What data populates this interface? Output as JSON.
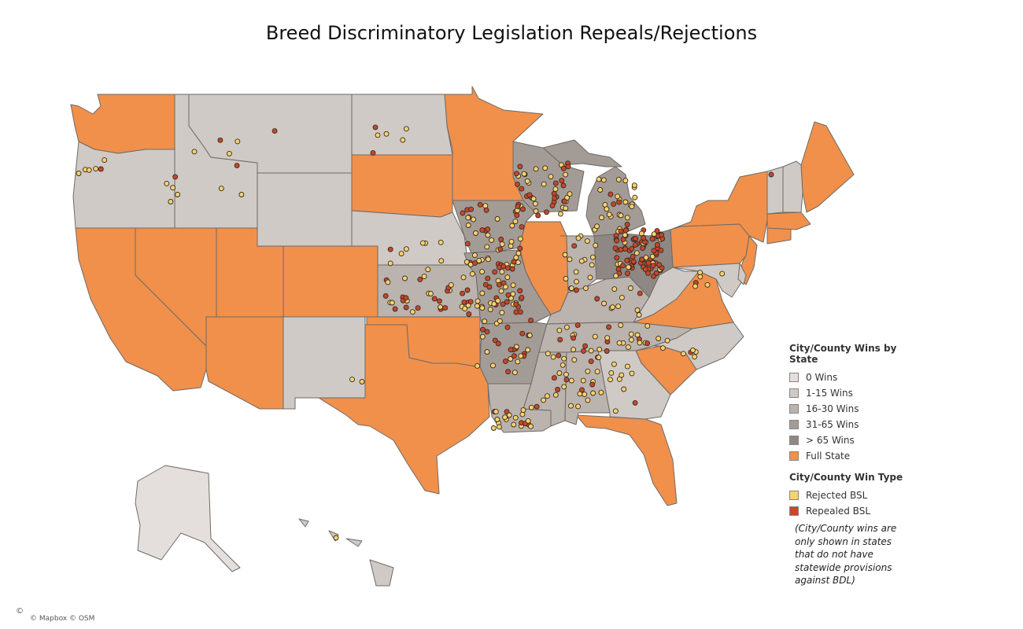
{
  "title": "Breed Discriminatory Legislation Repeals/Rejections",
  "legend": {
    "wins_title": "City/County Wins by State",
    "wins_items": [
      {
        "label": "0 Wins",
        "color": "#e4dfdc"
      },
      {
        "label": "1-15 Wins",
        "color": "#cfcac6"
      },
      {
        "label": "16-30 Wins",
        "color": "#bab3ae"
      },
      {
        "label": "31-65 Wins",
        "color": "#a39b96"
      },
      {
        "label": "> 65 Wins",
        "color": "#8f8783"
      },
      {
        "label": "Full State",
        "color": "#f0904b"
      }
    ],
    "type_title": "City/County Win Type",
    "type_items": [
      {
        "label": "Rejected BSL",
        "color": "#f6d36f"
      },
      {
        "label": "Repealed BSL",
        "color": "#c8462b"
      }
    ]
  },
  "note": "(City/County wins are only shown in states that do not have statewide provisions against BDL)",
  "attribution_icon": "©",
  "attribution": "© Mapbox © OSM"
}
